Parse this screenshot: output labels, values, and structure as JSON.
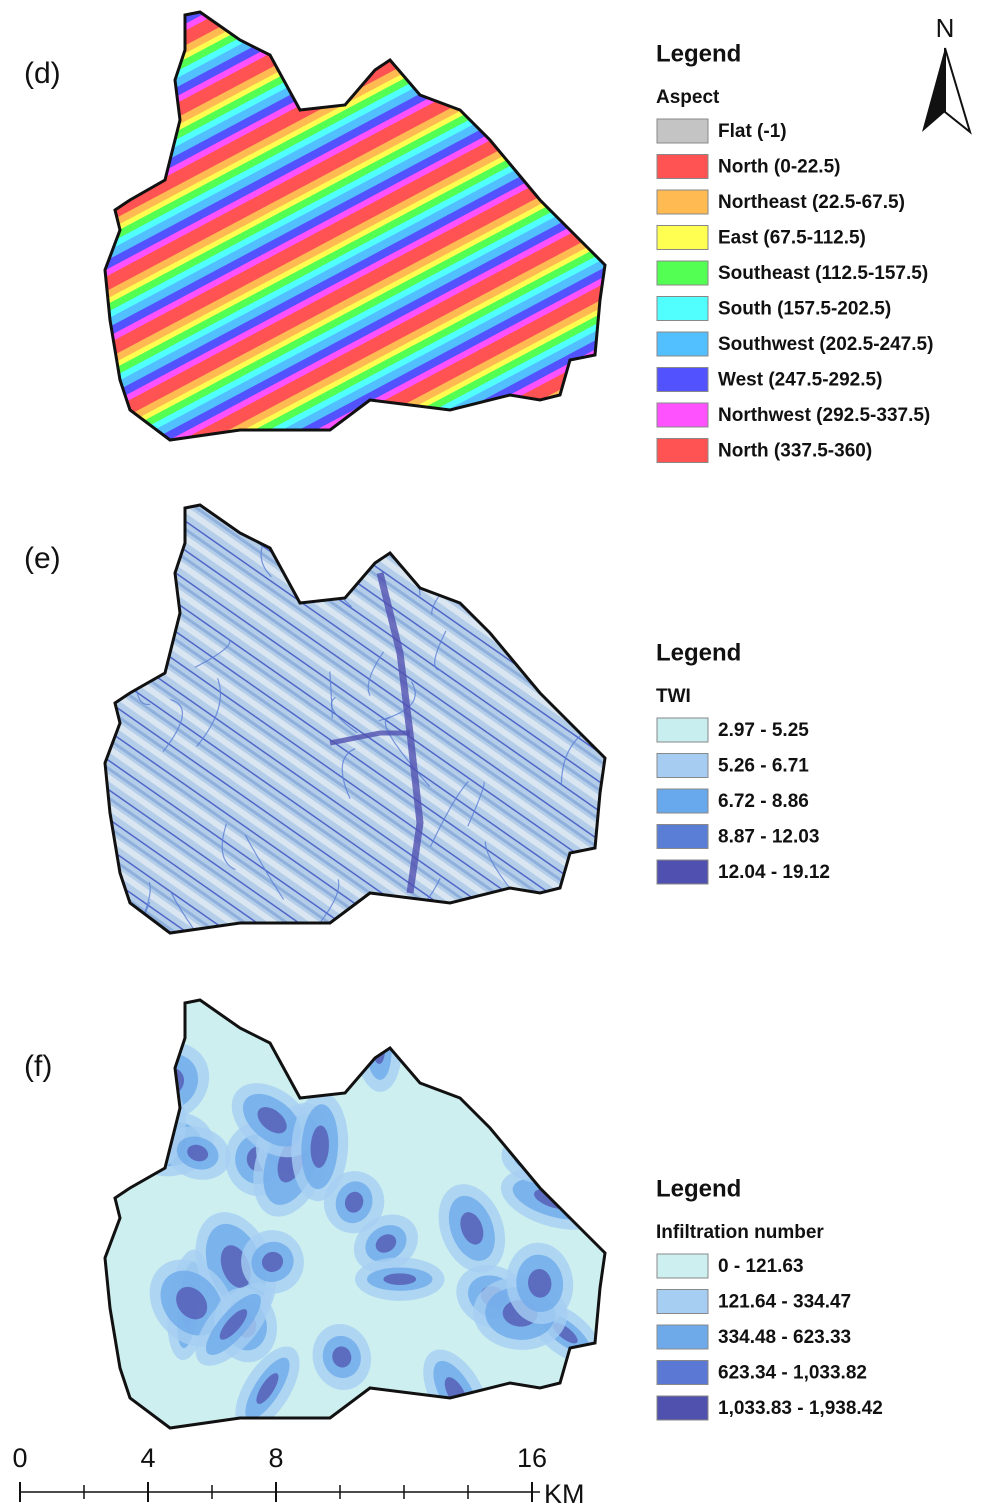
{
  "north": "N",
  "panels": [
    {
      "label": "(d)",
      "legend": {
        "title": "Legend",
        "subtitle": "Aspect",
        "items": [
          {
            "label": "Flat (-1)",
            "color": "#c4c4c4"
          },
          {
            "label": "North (0-22.5)",
            "color": "#ff5252"
          },
          {
            "label": "Northeast (22.5-67.5)",
            "color": "#ffba52"
          },
          {
            "label": "East (67.5-112.5)",
            "color": "#ffff52"
          },
          {
            "label": "Southeast (112.5-157.5)",
            "color": "#52ff52"
          },
          {
            "label": "South (157.5-202.5)",
            "color": "#52ffff"
          },
          {
            "label": "Southwest (202.5-247.5)",
            "color": "#52c0ff"
          },
          {
            "label": "West (247.5-292.5)",
            "color": "#5252ff"
          },
          {
            "label": "Northwest (292.5-337.5)",
            "color": "#ff52ff"
          },
          {
            "label": "North (337.5-360)",
            "color": "#ff5252"
          }
        ]
      }
    },
    {
      "label": "(e)",
      "legend": {
        "title": "Legend",
        "subtitle": "TWI",
        "items": [
          {
            "label": "2.97 - 5.25",
            "color": "#c9eef0"
          },
          {
            "label": "5.26 - 6.71",
            "color": "#a6ccf2"
          },
          {
            "label": "6.72 - 8.86",
            "color": "#68a8ec"
          },
          {
            "label": "8.87 - 12.03",
            "color": "#5a7ed6"
          },
          {
            "label": "12.04 - 19.12",
            "color": "#5050b0"
          }
        ]
      }
    },
    {
      "label": "(f)",
      "legend": {
        "title": "Legend",
        "subtitle": "Infiltration number",
        "items": [
          {
            "label": "0 - 121.63",
            "color": "#cdeff0"
          },
          {
            "label": "121.64 - 334.47",
            "color": "#a6cef2"
          },
          {
            "label": "334.48 - 623.33",
            "color": "#6eaaea"
          },
          {
            "label": "623.34 - 1,033.82",
            "color": "#5a78d4"
          },
          {
            "label": "1,033.83 - 1,938.42",
            "color": "#5050ae"
          }
        ]
      }
    }
  ],
  "scale_bar": {
    "ticks": [
      0,
      4,
      8,
      16
    ],
    "minor_ticks": [
      0,
      2,
      4,
      6,
      8,
      10,
      12,
      14,
      16
    ],
    "unit": "KM"
  }
}
